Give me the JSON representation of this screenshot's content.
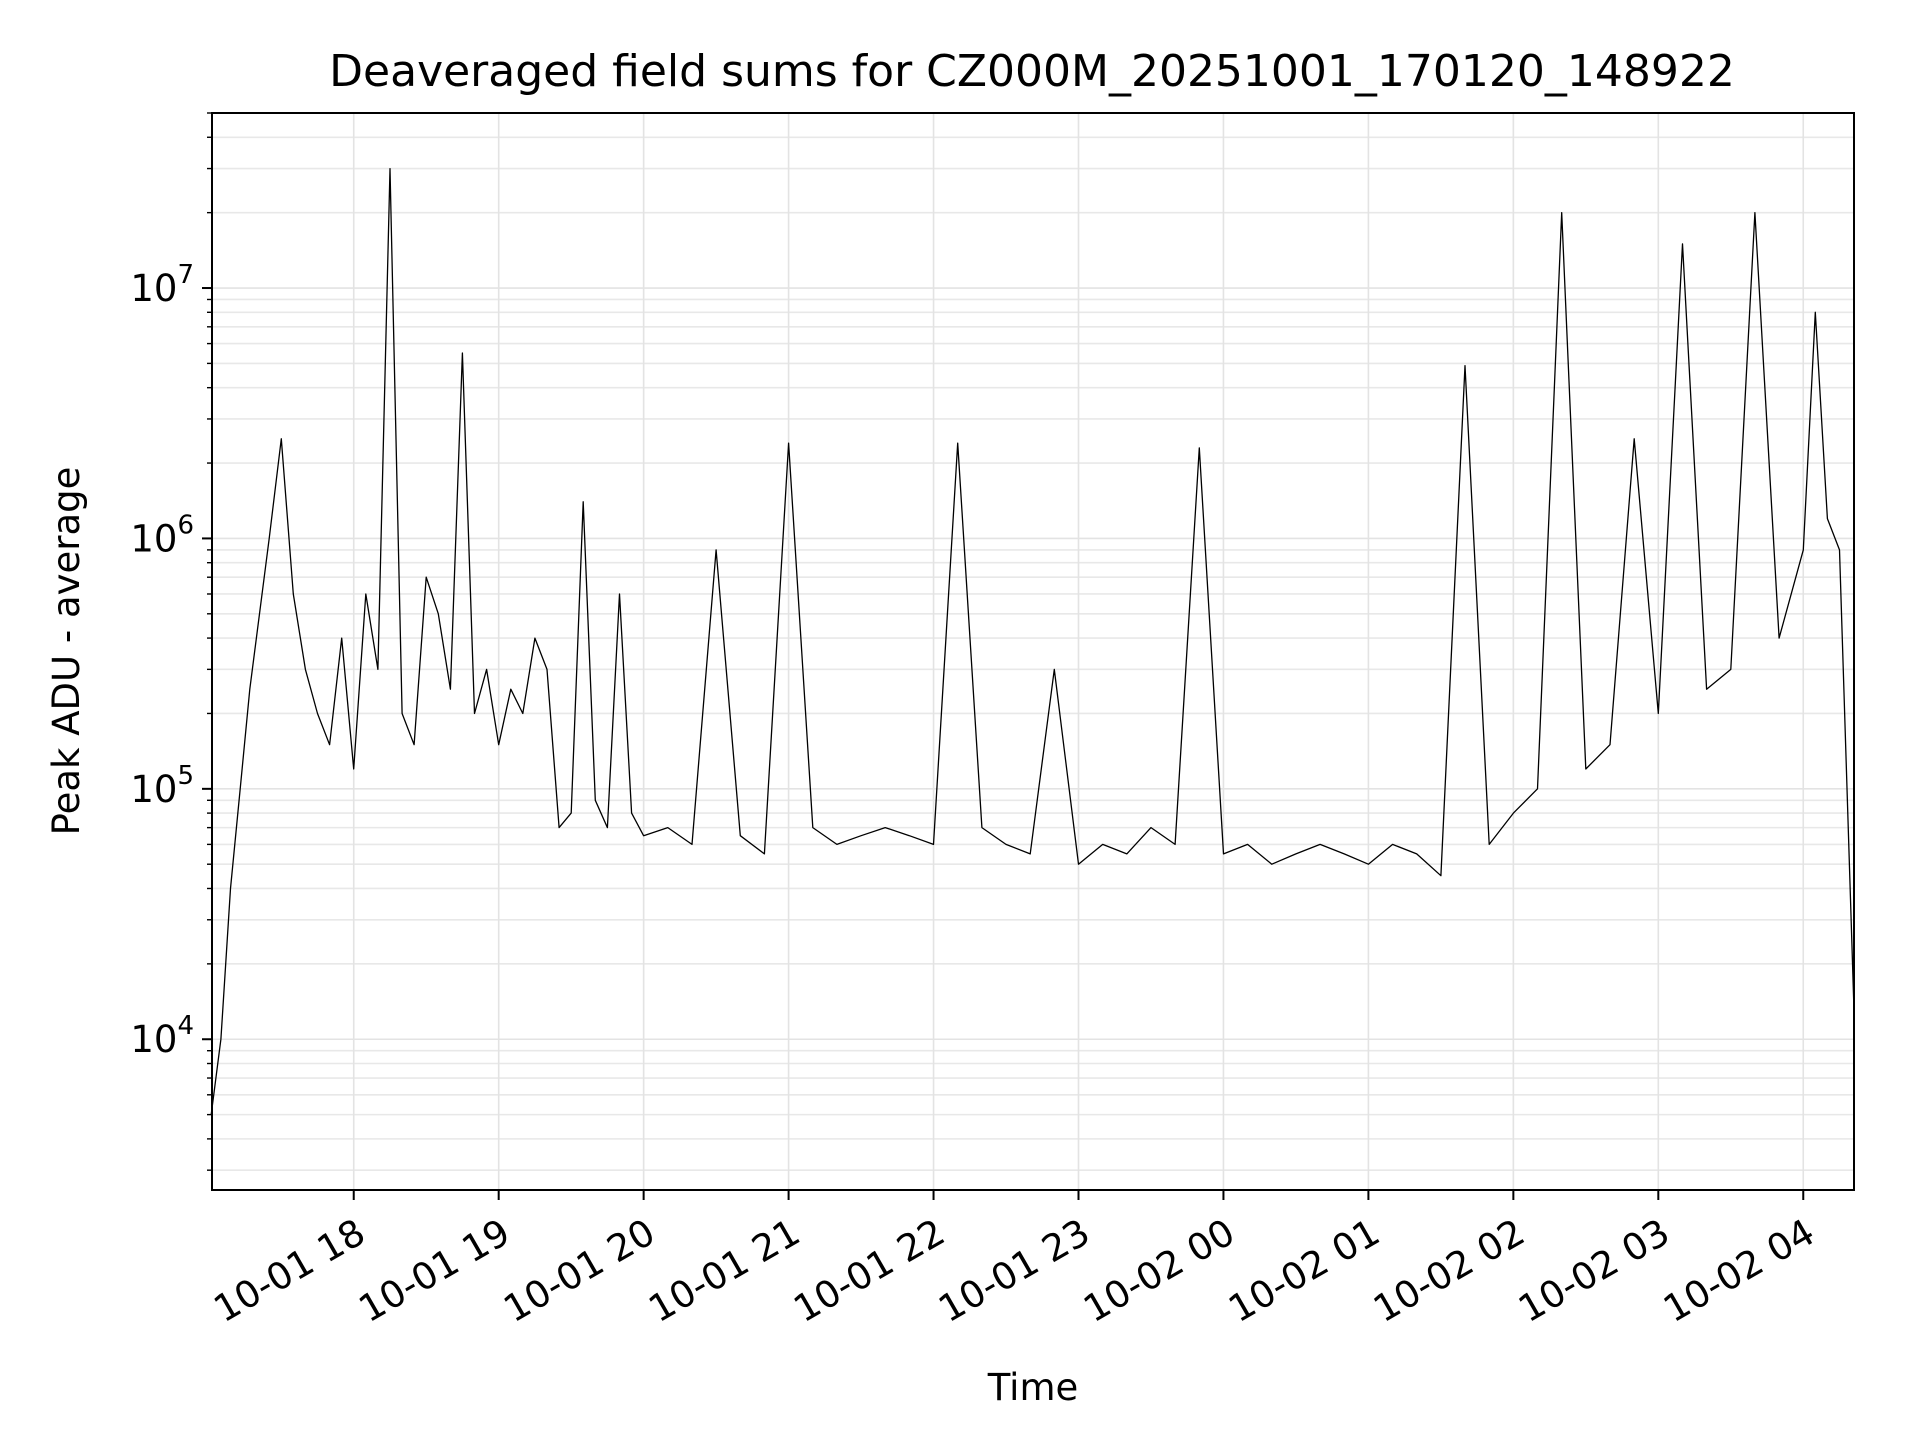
{
  "chart_data": {
    "type": "line",
    "title": "Deaveraged field sums for CZ000M_20251001_170120_148922",
    "xlabel": "Time",
    "ylabel": "Peak ADU - average",
    "yscale": "log",
    "grid": true,
    "line_color": "#000000",
    "xlim": [
      "2025-10-01 17:01:20",
      "2025-10-02 04:21:00"
    ],
    "ylim": [
      2500,
      50000000
    ],
    "x_ticks": [
      "10-01 18",
      "10-01 19",
      "10-01 20",
      "10-01 21",
      "10-01 22",
      "10-01 23",
      "10-02 00",
      "10-02 01",
      "10-02 02",
      "10-02 03",
      "10-02 04"
    ],
    "x_tick_values": [
      "2025-10-01 18:00",
      "2025-10-01 19:00",
      "2025-10-01 20:00",
      "2025-10-01 21:00",
      "2025-10-01 22:00",
      "2025-10-01 23:00",
      "2025-10-02 00:00",
      "2025-10-02 01:00",
      "2025-10-02 02:00",
      "2025-10-02 03:00",
      "2025-10-02 04:00"
    ],
    "y_ticks": [
      {
        "value": 10000,
        "mantissa": "10",
        "exponent": "4"
      },
      {
        "value": 100000,
        "mantissa": "10",
        "exponent": "5"
      },
      {
        "value": 1000000,
        "mantissa": "10",
        "exponent": "6"
      },
      {
        "value": 10000000,
        "mantissa": "10",
        "exponent": "7"
      }
    ],
    "series": [
      {
        "x": [
          "2025-10-01 17:01",
          "2025-10-01 17:05",
          "2025-10-01 17:09",
          "2025-10-01 17:13",
          "2025-10-01 17:17",
          "2025-10-01 17:21",
          "2025-10-01 17:25",
          "2025-10-01 17:30",
          "2025-10-01 17:35",
          "2025-10-01 17:40",
          "2025-10-01 17:45",
          "2025-10-01 17:50",
          "2025-10-01 17:55",
          "2025-10-01 18:00",
          "2025-10-01 18:05",
          "2025-10-01 18:10",
          "2025-10-01 18:15",
          "2025-10-01 18:20",
          "2025-10-01 18:25",
          "2025-10-01 18:30",
          "2025-10-01 18:35",
          "2025-10-01 18:40",
          "2025-10-01 18:45",
          "2025-10-01 18:50",
          "2025-10-01 18:55",
          "2025-10-01 19:00",
          "2025-10-01 19:05",
          "2025-10-01 19:10",
          "2025-10-01 19:15",
          "2025-10-01 19:20",
          "2025-10-01 19:25",
          "2025-10-01 19:30",
          "2025-10-01 19:35",
          "2025-10-01 19:40",
          "2025-10-01 19:45",
          "2025-10-01 19:50",
          "2025-10-01 19:55",
          "2025-10-01 20:00",
          "2025-10-01 20:10",
          "2025-10-01 20:20",
          "2025-10-01 20:30",
          "2025-10-01 20:40",
          "2025-10-01 20:50",
          "2025-10-01 21:00",
          "2025-10-01 21:10",
          "2025-10-01 21:20",
          "2025-10-01 21:30",
          "2025-10-01 21:40",
          "2025-10-01 21:50",
          "2025-10-01 22:00",
          "2025-10-01 22:10",
          "2025-10-01 22:20",
          "2025-10-01 22:30",
          "2025-10-01 22:40",
          "2025-10-01 22:50",
          "2025-10-01 23:00",
          "2025-10-01 23:10",
          "2025-10-01 23:20",
          "2025-10-01 23:30",
          "2025-10-01 23:40",
          "2025-10-01 23:50",
          "2025-10-02 00:00",
          "2025-10-02 00:10",
          "2025-10-02 00:20",
          "2025-10-02 00:30",
          "2025-10-02 00:40",
          "2025-10-02 00:50",
          "2025-10-02 01:00",
          "2025-10-02 01:10",
          "2025-10-02 01:20",
          "2025-10-02 01:30",
          "2025-10-02 01:40",
          "2025-10-02 01:50",
          "2025-10-02 02:00",
          "2025-10-02 02:10",
          "2025-10-02 02:20",
          "2025-10-02 02:30",
          "2025-10-02 02:40",
          "2025-10-02 02:50",
          "2025-10-02 03:00",
          "2025-10-02 03:10",
          "2025-10-02 03:20",
          "2025-10-02 03:30",
          "2025-10-02 03:40",
          "2025-10-02 03:50",
          "2025-10-02 04:00",
          "2025-10-02 04:05",
          "2025-10-02 04:10",
          "2025-10-02 04:15",
          "2025-10-02 04:21"
        ],
        "y": [
          5000,
          10000,
          40000,
          100000,
          250000,
          500000,
          1000000,
          2500000,
          600000,
          300000,
          200000,
          150000,
          400000,
          120000,
          600000,
          300000,
          30000000,
          200000,
          150000,
          700000,
          500000,
          250000,
          5500000,
          200000,
          300000,
          150000,
          250000,
          200000,
          400000,
          300000,
          70000,
          80000,
          1400000,
          90000,
          70000,
          600000,
          80000,
          65000,
          70000,
          60000,
          900000,
          65000,
          55000,
          2400000,
          70000,
          60000,
          65000,
          70000,
          65000,
          60000,
          2400000,
          70000,
          60000,
          55000,
          300000,
          50000,
          60000,
          55000,
          70000,
          60000,
          2300000,
          55000,
          60000,
          50000,
          55000,
          60000,
          55000,
          50000,
          60000,
          55000,
          45000,
          4900000,
          60000,
          80000,
          100000,
          20000000,
          120000,
          150000,
          2500000,
          200000,
          15000000,
          250000,
          300000,
          20000000,
          400000,
          900000,
          8000000,
          1200000,
          900000,
          13000
        ]
      }
    ]
  }
}
